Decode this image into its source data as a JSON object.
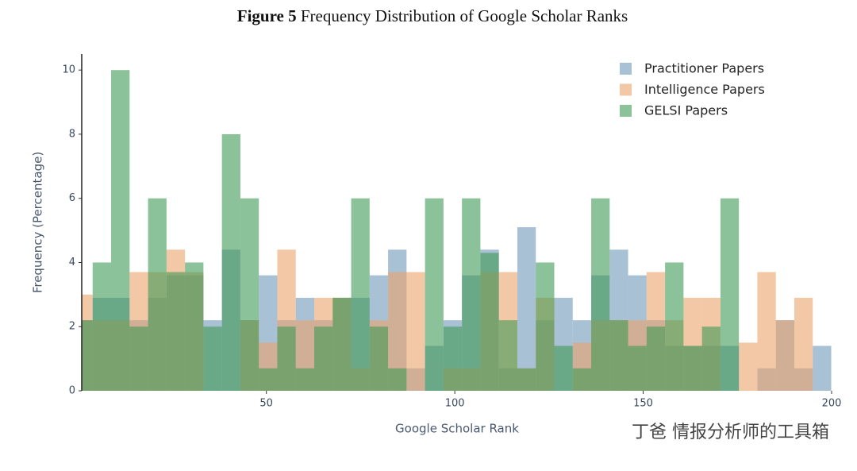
{
  "chart_data": {
    "type": "histogram",
    "title_label": "Figure 5",
    "title": "Frequency Distribution of Google Scholar Ranks",
    "x_label": "Google Scholar Rank",
    "y_label": "Frequency (Percentage)",
    "watermark": "丁爸 情报分析师的工具箱",
    "bins": [
      -1,
      3.9,
      8.8,
      13.7,
      18.6,
      23.5,
      28.4,
      33.3,
      38.2,
      43.1,
      48,
      52.9,
      57.8,
      62.7,
      67.6,
      72.5,
      77.4,
      82.3,
      87.2,
      92.1,
      97,
      101.9,
      106.8,
      111.7,
      116.6,
      121.5,
      126.4,
      131.3,
      136.2,
      141.1,
      146,
      150.9,
      155.8,
      160.7,
      165.6,
      170.5,
      175.4,
      180.3,
      185.2,
      190.1,
      195,
      199.9
    ],
    "series": [
      {
        "name": "Practitioner Papers",
        "color": "#6f97b8",
        "values": [
          2.2,
          2.9,
          2.9,
          2.2,
          2.9,
          3.6,
          3.6,
          2.2,
          4.4,
          2.2,
          3.6,
          2.2,
          2.9,
          2.2,
          2.9,
          2.9,
          3.6,
          4.4,
          0.7,
          1.4,
          2.2,
          3.6,
          4.4,
          0.7,
          5.1,
          2.2,
          2.9,
          2.2,
          3.6,
          4.4,
          3.6,
          2.2,
          1.4,
          1.4,
          1.4,
          1.4,
          0,
          0.7,
          2.2,
          0.7,
          1.4
        ]
      },
      {
        "name": "Intelligence Papers",
        "color": "#eba46c",
        "values": [
          3,
          2.2,
          2.2,
          3.7,
          3.7,
          4.4,
          3.7,
          0,
          0,
          2.2,
          1.5,
          4.4,
          2.2,
          2.9,
          2.9,
          0.7,
          2.2,
          3.7,
          3.7,
          0,
          0.7,
          0.7,
          3.7,
          3.7,
          0.7,
          2.9,
          0,
          1.5,
          2.2,
          2.2,
          2.2,
          3.7,
          2.2,
          2.9,
          2.9,
          0,
          1.5,
          3.7,
          2.2,
          2.9,
          0
        ]
      },
      {
        "name": "GELSI Papers",
        "color": "#3f9a55",
        "values": [
          2.2,
          4,
          10,
          2,
          6,
          3.7,
          4,
          2,
          8,
          6,
          0.7,
          2,
          0.7,
          2,
          2.9,
          6,
          2,
          0.7,
          0,
          6,
          2,
          6,
          4.3,
          2.2,
          0.7,
          4,
          1.4,
          0.7,
          6,
          2.2,
          1.4,
          2,
          4,
          1.4,
          2,
          6,
          0,
          0,
          0,
          0,
          0
        ]
      }
    ],
    "xlim": [
      1,
      200
    ],
    "ylim": [
      0,
      10.5
    ],
    "xticks": [
      50,
      100,
      150,
      200
    ],
    "yticks": [
      0,
      2,
      4,
      6,
      8,
      10
    ],
    "opacity": 0.6
  }
}
